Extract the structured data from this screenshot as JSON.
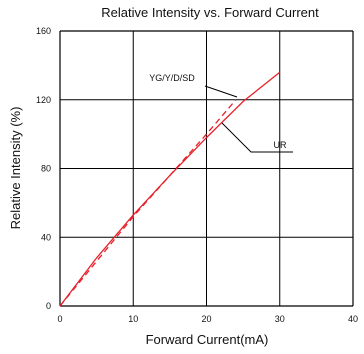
{
  "chart_data": {
    "type": "line",
    "title": "Relative Intensity vs. Forward Current",
    "xlabel": "Forward Current(mA)",
    "ylabel": "Relative Intensity (%)",
    "xlim": [
      0,
      40
    ],
    "ylim": [
      0,
      160
    ],
    "x_ticks": [
      "0",
      "10",
      "20",
      "30",
      "40"
    ],
    "y_ticks": [
      "0",
      "40",
      "80",
      "120",
      "160"
    ],
    "grid": true,
    "colors": {
      "series": "#e8202a",
      "grid": "#000000",
      "annotation_line": "#000000"
    },
    "series": [
      {
        "name": "YG/Y/D/SD",
        "style": "dashed",
        "x": [
          0,
          5,
          10,
          15,
          20,
          24
        ],
        "y": [
          0,
          26,
          52,
          76,
          100,
          120
        ]
      },
      {
        "name": "UR",
        "style": "solid",
        "x": [
          0,
          5,
          10,
          15,
          20,
          25,
          30
        ],
        "y": [
          0,
          28,
          53,
          76,
          98,
          119,
          136
        ]
      }
    ]
  }
}
